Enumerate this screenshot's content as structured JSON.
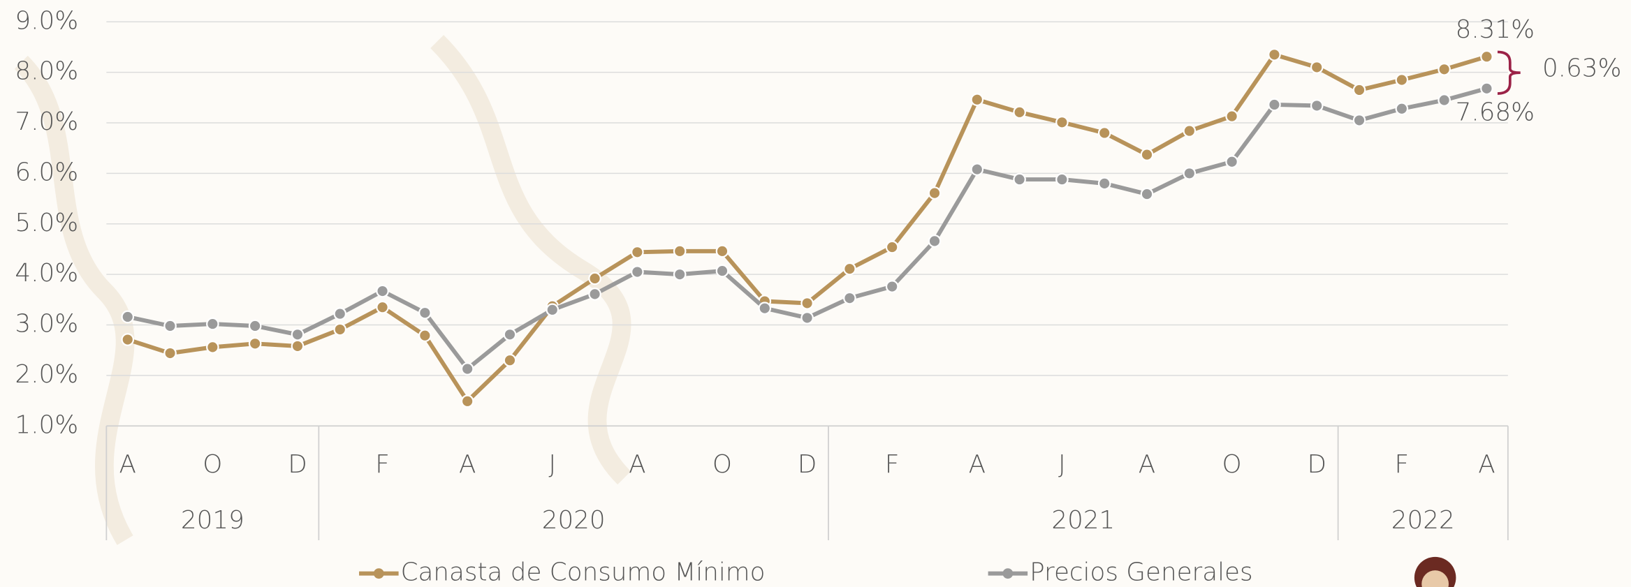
{
  "chart_data": {
    "type": "line",
    "categories": [
      "A",
      null,
      "O",
      null,
      "D",
      null,
      "F",
      null,
      "A",
      null,
      "J",
      null,
      "A",
      null,
      "O",
      null,
      "D",
      null,
      "F",
      null,
      "A",
      null,
      "J",
      null,
      "A",
      null,
      "O",
      null,
      "D",
      null,
      "F",
      null,
      "A"
    ],
    "year_groups": [
      {
        "label": "2019",
        "span": 5
      },
      {
        "label": "2020",
        "span": 12
      },
      {
        "label": "2021",
        "span": 12
      },
      {
        "label": "2022",
        "span": 4
      }
    ],
    "series": [
      {
        "name": "Canasta de Consumo Mínimo",
        "color": "#b8935a",
        "values": [
          2.71,
          2.44,
          2.56,
          2.63,
          2.58,
          2.91,
          3.35,
          2.79,
          1.49,
          2.3,
          3.37,
          3.92,
          4.44,
          4.46,
          4.46,
          3.47,
          3.43,
          4.11,
          4.54,
          5.61,
          7.46,
          7.21,
          7.01,
          6.8,
          6.37,
          6.84,
          7.13,
          8.35,
          8.1,
          7.65,
          7.85,
          8.06,
          8.31
        ],
        "value_labels": [
          null,
          null,
          null,
          null,
          null,
          null,
          null,
          null,
          null,
          null,
          null,
          null,
          null,
          null,
          null,
          null,
          null,
          null,
          null,
          null,
          null,
          null,
          null,
          null,
          null,
          null,
          null,
          null,
          null,
          null,
          null,
          null,
          "8.31%"
        ]
      },
      {
        "name": "Precios Generales",
        "color": "#9a9a9a",
        "values": [
          3.16,
          2.98,
          3.02,
          2.98,
          2.81,
          3.22,
          3.67,
          3.24,
          2.13,
          2.81,
          3.3,
          3.61,
          4.05,
          4.0,
          4.07,
          3.33,
          3.14,
          3.53,
          3.76,
          4.66,
          6.08,
          5.88,
          5.88,
          5.8,
          5.59,
          6.0,
          6.23,
          7.36,
          7.34,
          7.05,
          7.28,
          7.45,
          7.68
        ],
        "value_labels": [
          null,
          null,
          null,
          null,
          null,
          null,
          null,
          null,
          null,
          null,
          null,
          null,
          null,
          null,
          null,
          null,
          null,
          null,
          null,
          null,
          null,
          null,
          null,
          null,
          null,
          null,
          null,
          null,
          null,
          null,
          null,
          null,
          "7.68%"
        ]
      }
    ],
    "annotation": "0.63%",
    "ylim": [
      1,
      9
    ],
    "yticks": [
      {
        "value": 1,
        "label": "1.0%"
      },
      {
        "value": 2,
        "label": "2.0%"
      },
      {
        "value": 3,
        "label": "3.0%"
      },
      {
        "value": 4,
        "label": "4.0%"
      },
      {
        "value": 5,
        "label": "5.0%"
      },
      {
        "value": 6,
        "label": "6.0%"
      },
      {
        "value": 7,
        "label": "7.0%"
      },
      {
        "value": 8,
        "label": "8.0%"
      },
      {
        "value": 9,
        "label": "9.0%"
      }
    ],
    "grid": true,
    "legend": "bottom"
  }
}
